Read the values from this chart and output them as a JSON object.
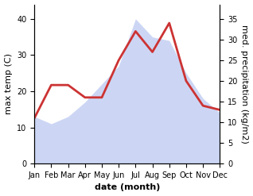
{
  "months": [
    "Jan",
    "Feb",
    "Mar",
    "Apr",
    "May",
    "Jun",
    "Jul",
    "Aug",
    "Sep",
    "Oct",
    "Nov",
    "Dec"
  ],
  "max_temp": [
    13,
    11,
    13,
    17,
    22,
    27,
    40,
    35,
    34,
    25,
    18,
    14
  ],
  "precipitation": [
    11,
    19,
    19,
    16,
    16,
    25,
    32,
    27,
    34,
    20,
    14,
    13
  ],
  "temp_color": "#aabbee",
  "precip_color": "#cc3333",
  "temp_ylim": [
    0,
    44
  ],
  "precip_ylim": [
    0,
    38.5
  ],
  "temp_yticks": [
    0,
    10,
    20,
    30,
    40
  ],
  "precip_yticks": [
    0,
    5,
    10,
    15,
    20,
    25,
    30,
    35
  ],
  "ylabel_left": "max temp (C)",
  "ylabel_right": "med. precipitation (kg/m2)",
  "xlabel": "date (month)",
  "background_color": "#ffffff",
  "temp_linewidth": 2.0,
  "xlabel_fontsize": 8,
  "ylabel_fontsize": 8,
  "tick_fontsize": 7
}
